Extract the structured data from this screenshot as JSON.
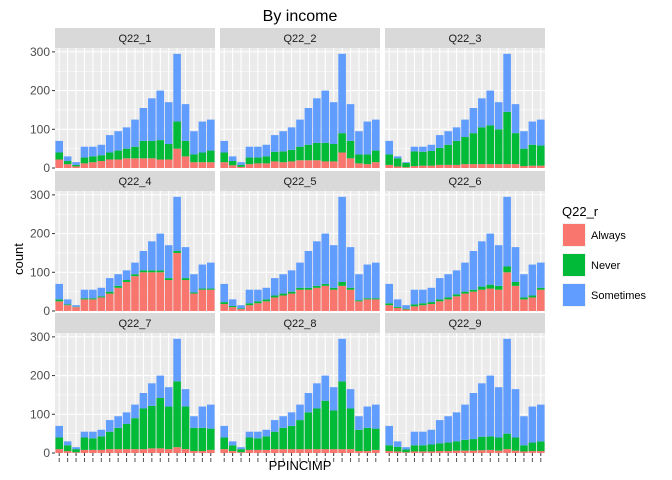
{
  "chart_data": {
    "type": "bar",
    "stacked": true,
    "title": "By income",
    "xlabel": "PPINCIMP",
    "ylabel": "count",
    "ylim": [
      0,
      310
    ],
    "yticks": [
      0,
      100,
      200,
      300
    ],
    "x_tick_count": 19,
    "facets": [
      "Q22_1",
      "Q22_2",
      "Q22_3",
      "Q22_4",
      "Q22_5",
      "Q22_6",
      "Q22_7",
      "Q22_8",
      "Q22_9"
    ],
    "legend": {
      "title": "Q22_r",
      "position": "right",
      "entries": [
        "Always",
        "Never",
        "Sometimes"
      ]
    },
    "colors": {
      "Always": "#F8766D",
      "Never": "#00BA38",
      "Sometimes": "#619CFF",
      "panel": "#EBEBEB",
      "strip": "#D9D9D9"
    },
    "totals": [
      70,
      30,
      15,
      55,
      55,
      60,
      85,
      95,
      105,
      125,
      155,
      180,
      200,
      170,
      295,
      165,
      95,
      120,
      125
    ],
    "panels": [
      {
        "name": "Q22_1",
        "Always": [
          22,
          10,
          4,
          12,
          15,
          18,
          22,
          22,
          25,
          25,
          25,
          25,
          22,
          22,
          50,
          30,
          15,
          15,
          15
        ],
        "Never": [
          18,
          8,
          4,
          15,
          15,
          15,
          18,
          23,
          25,
          30,
          45,
          45,
          50,
          40,
          70,
          40,
          20,
          25,
          30
        ]
      },
      {
        "name": "Q22_2",
        "Always": [
          15,
          7,
          3,
          10,
          12,
          12,
          17,
          15,
          17,
          20,
          20,
          20,
          17,
          17,
          40,
          25,
          12,
          10,
          15
        ],
        "Never": [
          25,
          11,
          5,
          17,
          15,
          18,
          25,
          28,
          30,
          35,
          40,
          45,
          48,
          45,
          50,
          45,
          23,
          25,
          30
        ]
      },
      {
        "name": "Q22_3",
        "Always": [
          8,
          4,
          2,
          5,
          6,
          6,
          8,
          8,
          8,
          10,
          10,
          10,
          10,
          10,
          10,
          10,
          5,
          6,
          6
        ],
        "Never": [
          27,
          21,
          11,
          38,
          36,
          38,
          44,
          52,
          62,
          70,
          80,
          95,
          100,
          90,
          135,
          80,
          45,
          54,
          52
        ]
      },
      {
        "name": "Q22_4",
        "Always": [
          25,
          15,
          10,
          30,
          30,
          35,
          45,
          60,
          75,
          90,
          100,
          100,
          100,
          80,
          150,
          80,
          45,
          55,
          55
        ],
        "Never": [
          5,
          2,
          1,
          3,
          3,
          3,
          5,
          5,
          5,
          5,
          5,
          5,
          5,
          5,
          5,
          5,
          3,
          3,
          3
        ]
      },
      {
        "name": "Q22_5",
        "Always": [
          18,
          10,
          5,
          15,
          20,
          25,
          35,
          40,
          45,
          55,
          55,
          60,
          65,
          55,
          65,
          55,
          25,
          30,
          30
        ],
        "Never": [
          5,
          3,
          2,
          5,
          5,
          5,
          5,
          5,
          5,
          5,
          5,
          5,
          5,
          5,
          10,
          5,
          3,
          3,
          3
        ]
      },
      {
        "name": "Q22_6",
        "Always": [
          15,
          8,
          4,
          12,
          15,
          18,
          25,
          30,
          38,
          45,
          50,
          55,
          58,
          55,
          100,
          65,
          30,
          35,
          55
        ],
        "Never": [
          5,
          3,
          2,
          5,
          5,
          5,
          5,
          5,
          5,
          5,
          5,
          8,
          10,
          10,
          15,
          10,
          5,
          5,
          5
        ]
      },
      {
        "name": "Q22_7",
        "Always": [
          10,
          5,
          2,
          8,
          8,
          8,
          10,
          10,
          10,
          10,
          10,
          12,
          12,
          10,
          15,
          10,
          5,
          5,
          8
        ],
        "Never": [
          30,
          15,
          8,
          32,
          30,
          35,
          45,
          55,
          65,
          80,
          105,
          110,
          130,
          110,
          170,
          110,
          60,
          60,
          55
        ]
      },
      {
        "name": "Q22_8",
        "Always": [
          10,
          5,
          2,
          8,
          8,
          8,
          10,
          10,
          10,
          10,
          10,
          10,
          10,
          10,
          10,
          10,
          5,
          5,
          8
        ],
        "Never": [
          30,
          15,
          8,
          32,
          30,
          35,
          45,
          55,
          60,
          75,
          95,
          105,
          125,
          100,
          175,
          105,
          55,
          60,
          55
        ]
      },
      {
        "name": "Q22_9",
        "Always": [
          5,
          4,
          2,
          4,
          4,
          4,
          5,
          5,
          6,
          6,
          6,
          7,
          8,
          6,
          10,
          6,
          4,
          5,
          5
        ],
        "Never": [
          15,
          12,
          7,
          16,
          16,
          18,
          20,
          22,
          24,
          28,
          30,
          35,
          35,
          34,
          40,
          34,
          16,
          22,
          25
        ]
      }
    ]
  }
}
